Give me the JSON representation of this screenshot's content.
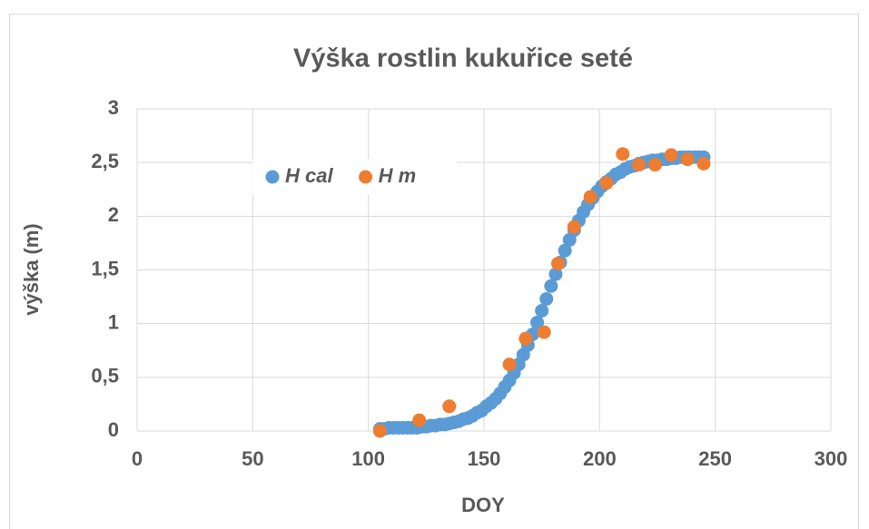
{
  "chart_data": {
    "type": "scatter",
    "title": "Výška rostlin kukuřice seté",
    "xlabel": "DOY",
    "ylabel": "výška (m)",
    "xlim": [
      0,
      300
    ],
    "xticks": [
      0,
      50,
      100,
      150,
      200,
      250,
      300
    ],
    "ylim": [
      0,
      3
    ],
    "yticks": [
      0,
      {
        "value": 0.5,
        "label": "0,5"
      },
      1,
      {
        "value": 1.5,
        "label": "1,5"
      },
      2,
      {
        "value": 2.5,
        "label": "2,5"
      },
      3
    ],
    "grid": true,
    "legend": "upper left",
    "series": [
      {
        "name": "H cal",
        "color": "#5b9bd5",
        "x": [
          105,
          107,
          109,
          111,
          113,
          115,
          117,
          119,
          121,
          123,
          125,
          127,
          129,
          131,
          133,
          135,
          137,
          139,
          141,
          143,
          145,
          147,
          149,
          151,
          153,
          155,
          157,
          159,
          161,
          163,
          165,
          167,
          169,
          171,
          173,
          175,
          177,
          179,
          181,
          183,
          185,
          187,
          189,
          191,
          193,
          195,
          197,
          199,
          201,
          203,
          205,
          207,
          209,
          211,
          213,
          215,
          217,
          219,
          221,
          223,
          225,
          227,
          229,
          231,
          233,
          235,
          237,
          239,
          241,
          243,
          245
        ],
        "values": [
          0.02,
          0.02,
          0.03,
          0.03,
          0.03,
          0.03,
          0.03,
          0.03,
          0.03,
          0.04,
          0.04,
          0.05,
          0.05,
          0.06,
          0.06,
          0.07,
          0.08,
          0.09,
          0.11,
          0.12,
          0.14,
          0.17,
          0.19,
          0.23,
          0.26,
          0.3,
          0.35,
          0.41,
          0.47,
          0.54,
          0.62,
          0.71,
          0.8,
          0.9,
          1.01,
          1.12,
          1.23,
          1.35,
          1.46,
          1.57,
          1.68,
          1.78,
          1.87,
          1.96,
          2.04,
          2.11,
          2.17,
          2.23,
          2.28,
          2.32,
          2.35,
          2.39,
          2.41,
          2.44,
          2.46,
          2.47,
          2.49,
          2.5,
          2.51,
          2.52,
          2.52,
          2.53,
          2.53,
          2.54,
          2.54,
          2.55,
          2.55,
          2.55,
          2.55,
          2.55,
          2.55
        ]
      },
      {
        "name": "H m",
        "color": "#ed7d31",
        "x": [
          105,
          122,
          135,
          161,
          168,
          176,
          182,
          189,
          196,
          203,
          210,
          217,
          224,
          231,
          238,
          245
        ],
        "values": [
          0,
          0.1,
          0.23,
          0.62,
          0.86,
          0.92,
          1.56,
          1.9,
          2.18,
          2.31,
          2.58,
          2.48,
          2.48,
          2.57,
          2.53,
          2.49
        ]
      }
    ]
  }
}
